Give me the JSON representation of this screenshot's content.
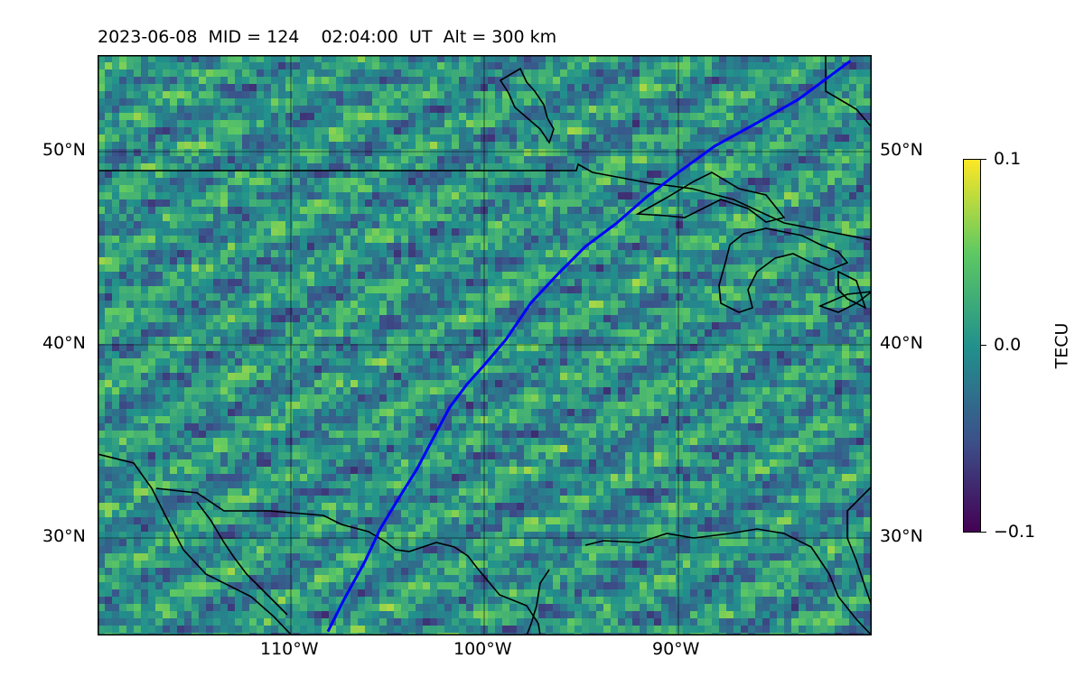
{
  "title": "2023-06-08  MID = 124    02:04:00  UT  Alt = 300 km",
  "map": {
    "extent": {
      "lon": [
        -120,
        -80
      ],
      "lat": [
        25,
        55
      ]
    },
    "latitude_labels": [
      "50°N",
      "40°N",
      "30°N"
    ],
    "longitude_labels": [
      "110°W",
      "100°W",
      "90°W"
    ],
    "track_color": "#0000ff",
    "coastline_color": "#000000"
  },
  "colorbar": {
    "title": "TECU",
    "ticks": [
      "0.1",
      "0.0",
      "−0.1"
    ],
    "colormap": "viridis",
    "range": [
      -0.1,
      0.1
    ]
  },
  "chart_data": {
    "type": "heatmap",
    "title": "2023-06-08  MID = 124    02:04:00  UT  Alt = 300 km",
    "colorbar_label": "TECU",
    "vlim": [
      -0.1,
      0.1
    ],
    "xlim_lon": [
      -120,
      -80
    ],
    "ylim_lat": [
      25,
      55
    ],
    "track": {
      "lon": [
        -108.1,
        -107.3,
        -106.2,
        -105.4,
        -104.5,
        -103.5,
        -102.6,
        -101.8,
        -100.9,
        -100.0,
        -98.9,
        -97.6,
        -96.2,
        -94.8,
        -93.2,
        -91.6,
        -89.9,
        -88.1,
        -86.1,
        -83.8,
        -81.1
      ],
      "lat": [
        25.2,
        26.8,
        28.8,
        30.5,
        32.0,
        33.6,
        35.3,
        36.8,
        38.0,
        39.0,
        40.3,
        42.2,
        43.7,
        45.1,
        46.3,
        47.7,
        49.0,
        50.3,
        51.4,
        52.7,
        54.7
      ]
    }
  }
}
